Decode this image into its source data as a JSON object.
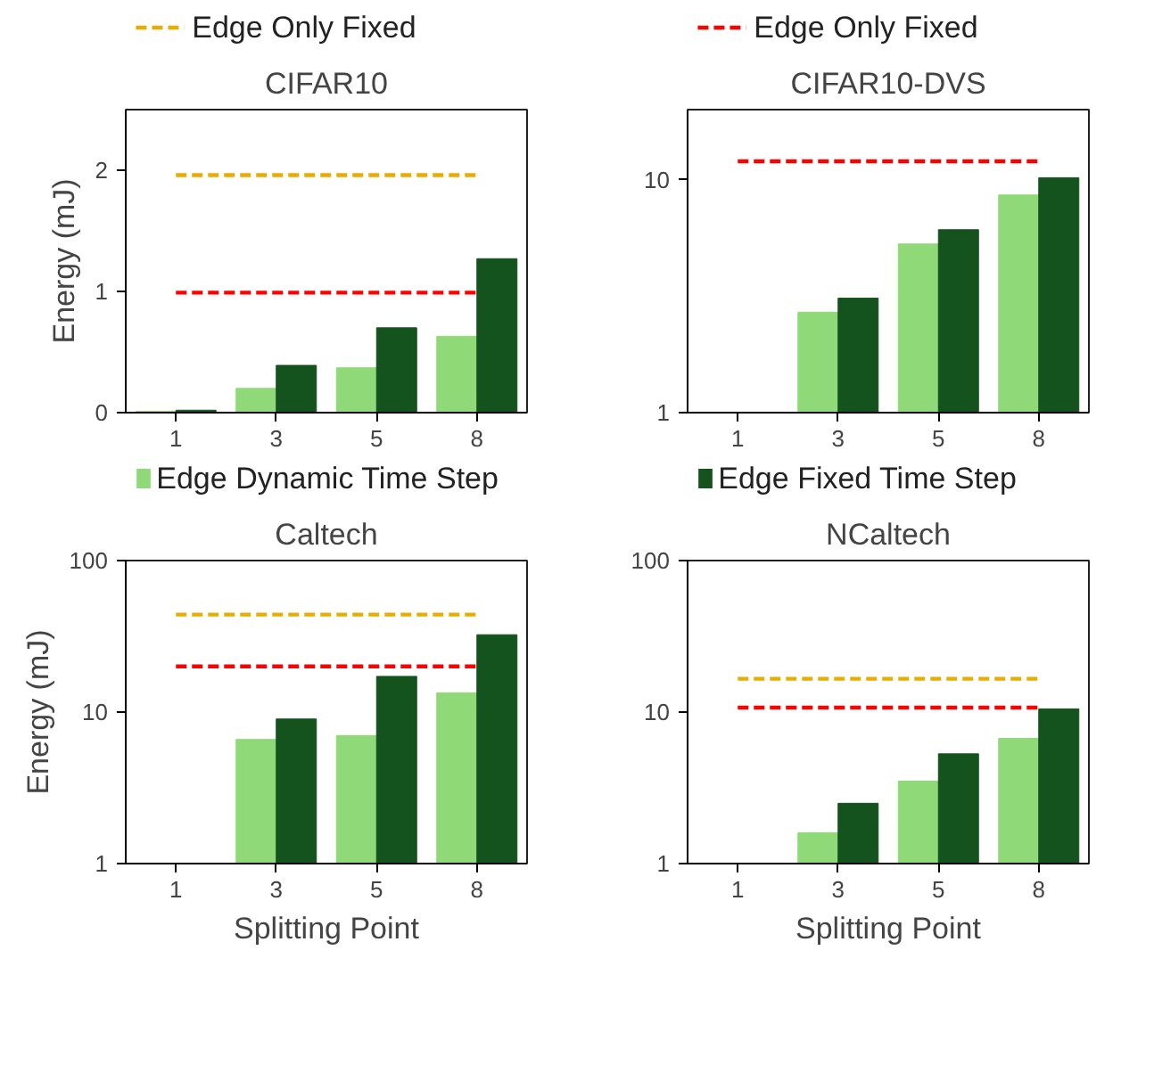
{
  "chart_data": [
    {
      "type": "bar",
      "title": "CIFAR10",
      "ylabel": "Energy (mJ)",
      "categories": [
        "1",
        "3",
        "5",
        "8"
      ],
      "ylim": [
        0,
        2.5
      ],
      "yticks": [
        0,
        1,
        2
      ],
      "legend": "top",
      "grid": false,
      "series": [
        {
          "color": "#90d978",
          "values": [
            0.01,
            0.2,
            0.37,
            0.63
          ]
        },
        {
          "color": "#14531d",
          "values": [
            0.02,
            0.39,
            0.7,
            1.27
          ]
        }
      ],
      "ref_lines": [
        {
          "axis": "y",
          "value": 1.96,
          "label": "Edge Only Fixed",
          "color": "#e8ad00",
          "line_style": "dashed"
        },
        {
          "axis": "y",
          "value": 0.99,
          "color": "#ff0000",
          "line_style": "dashed"
        }
      ]
    },
    {
      "type": "bar",
      "title": "CIFAR10-DVS",
      "categories": [
        "1",
        "3",
        "5",
        "8"
      ],
      "log": true,
      "ylim": [
        1,
        20
      ],
      "yticks": [
        1,
        10
      ],
      "legend": "top",
      "grid": false,
      "series": [
        {
          "color": "#90d978",
          "values": [
            1,
            2.7,
            5.3,
            8.6
          ]
        },
        {
          "color": "#14531d",
          "values": [
            1,
            3.1,
            6.1,
            10.2
          ]
        }
      ],
      "ref_lines": [
        {
          "axis": "y",
          "value": 12,
          "label": "Edge Only Fixed",
          "color": "#ff0000",
          "line_style": "dashed"
        }
      ]
    },
    {
      "type": "bar",
      "title": "Caltech",
      "ylabel": "Energy (mJ)",
      "xlabel": "Splitting Point",
      "categories": [
        "1",
        "3",
        "5",
        "8"
      ],
      "log": true,
      "ylim": [
        1,
        100
      ],
      "yticks": [
        1,
        10,
        100
      ],
      "legend": "top",
      "grid": false,
      "series": [
        {
          "name": "Edge Dynamic Time Step",
          "color": "#90d978",
          "values": [
            1,
            6.6,
            7.0,
            13.4
          ]
        },
        {
          "color": "#14531d",
          "values": [
            1,
            9.0,
            17.2,
            32.4
          ]
        }
      ],
      "ref_lines": [
        {
          "axis": "y",
          "value": 44,
          "color": "#e8ad00",
          "line_style": "dashed"
        },
        {
          "axis": "y",
          "value": 20,
          "color": "#ff0000",
          "line_style": "dashed"
        }
      ]
    },
    {
      "type": "bar",
      "title": "NCaltech",
      "xlabel": "Splitting Point",
      "categories": [
        "1",
        "3",
        "5",
        "8"
      ],
      "log": true,
      "ylim": [
        1,
        100
      ],
      "yticks": [
        1,
        10,
        100
      ],
      "legend": "top",
      "grid": false,
      "series": [
        {
          "color": "#90d978",
          "values": [
            1,
            1.6,
            3.5,
            6.7
          ]
        },
        {
          "name": "Edge Fixed Time Step",
          "color": "#14531d",
          "values": [
            1,
            2.5,
            5.3,
            10.5
          ]
        }
      ],
      "ref_lines": [
        {
          "axis": "y",
          "value": 16.6,
          "color": "#e8ad00",
          "line_style": "dashed"
        },
        {
          "axis": "y",
          "value": 10.7,
          "color": "#ff0000",
          "line_style": "dashed"
        }
      ]
    }
  ]
}
